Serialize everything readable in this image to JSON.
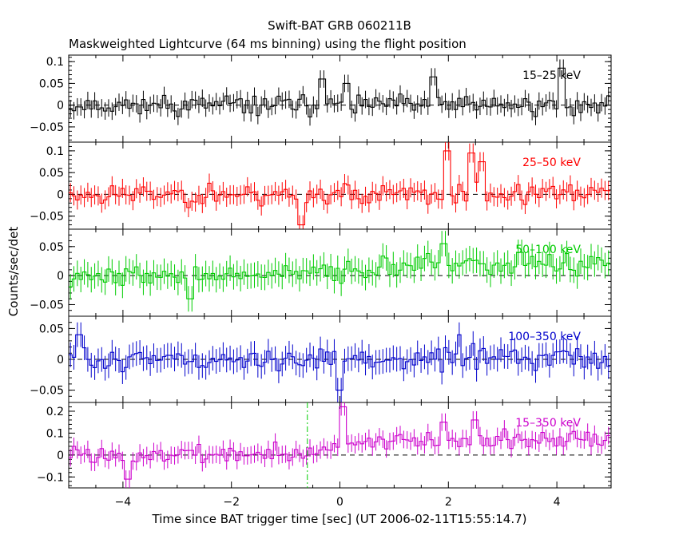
{
  "chart_data": {
    "type": "line",
    "title": "Swift-BAT GRB 060211B",
    "subtitle": "Maskweighted Lightcurve (64 ms binning) using the flight position",
    "xlabel": "Time since BAT trigger time [sec] (UT 2006-02-11T15:55:14.7)",
    "ylabel": "Counts/sec/det",
    "xlim": [
      -5,
      5
    ],
    "x_ticks": [
      -4,
      -2,
      0,
      2,
      4
    ],
    "x_tick_labels": [
      "−4",
      "−2",
      "0",
      "2",
      "4"
    ],
    "bin_width_sec": 0.064,
    "reference_line": {
      "y": 0,
      "style": "dashed"
    },
    "marker_line": {
      "x": -0.6,
      "color": "#00cc00",
      "style": "dash-dot",
      "panel": 5
    },
    "series": [
      {
        "name": "15–25 keV",
        "color": "#000000",
        "ylim": [
          -0.085,
          0.115
        ],
        "y_ticks": [
          -0.05,
          0,
          0.05,
          0.1
        ],
        "y_tick_labels": [
          "−0.05",
          "0",
          "0.05",
          "0.1"
        ],
        "amplitude": 0.022,
        "error": 0.02,
        "seed": 11,
        "peaks": [
          {
            "t": -0.35,
            "v": 0.06
          },
          {
            "t": 0.1,
            "v": 0.05
          },
          {
            "t": 1.75,
            "v": 0.065
          },
          {
            "t": 4.1,
            "v": 0.085
          }
        ]
      },
      {
        "name": "25–50 keV",
        "color": "#ff0000",
        "ylim": [
          -0.08,
          0.12
        ],
        "y_ticks": [
          -0.05,
          0,
          0.05,
          0.1
        ],
        "y_tick_labels": [
          "−0.05",
          "0",
          "0.05",
          "0.1"
        ],
        "amplitude": 0.024,
        "error": 0.022,
        "seed": 23,
        "peaks": [
          {
            "t": -0.7,
            "v": -0.07
          },
          {
            "t": 1.95,
            "v": 0.1
          },
          {
            "t": 2.4,
            "v": 0.095
          },
          {
            "t": 2.6,
            "v": 0.075
          }
        ]
      },
      {
        "name": "50–100 keV",
        "color": "#00cc00",
        "ylim": [
          -0.07,
          0.08
        ],
        "y_ticks": [
          -0.05,
          0,
          0.05
        ],
        "y_tick_labels": [
          "−0.05",
          "0",
          "0.05"
        ],
        "amplitude": 0.017,
        "error": 0.022,
        "seed": 37,
        "trend": 0.018,
        "peaks": [
          {
            "t": -2.75,
            "v": -0.04
          },
          {
            "t": 1.9,
            "v": 0.055
          },
          {
            "t": 3.3,
            "v": 0.04
          }
        ]
      },
      {
        "name": "100–350 keV",
        "color": "#0000cc",
        "ylim": [
          -0.07,
          0.07
        ],
        "y_ticks": [
          -0.05,
          0,
          0.05
        ],
        "y_tick_labels": [
          "−0.05",
          "0",
          "0.05"
        ],
        "amplitude": 0.018,
        "error": 0.02,
        "seed": 51,
        "peaks": [
          {
            "t": -4.8,
            "v": 0.04
          },
          {
            "t": 0.0,
            "v": -0.05
          },
          {
            "t": 2.2,
            "v": 0.04
          }
        ]
      },
      {
        "name": "15–350 keV",
        "color": "#cc00cc",
        "ylim": [
          -0.15,
          0.24
        ],
        "y_ticks": [
          -0.1,
          0,
          0.1,
          0.2
        ],
        "y_tick_labels": [
          "−0.1",
          "0",
          "0.1",
          "0.2"
        ],
        "amplitude": 0.04,
        "error": 0.04,
        "seed": 73,
        "trend": 0.07,
        "peaks": [
          {
            "t": -3.9,
            "v": -0.11
          },
          {
            "t": 0.05,
            "v": 0.22
          },
          {
            "t": 1.9,
            "v": 0.15
          },
          {
            "t": 2.5,
            "v": 0.16
          }
        ]
      }
    ]
  }
}
